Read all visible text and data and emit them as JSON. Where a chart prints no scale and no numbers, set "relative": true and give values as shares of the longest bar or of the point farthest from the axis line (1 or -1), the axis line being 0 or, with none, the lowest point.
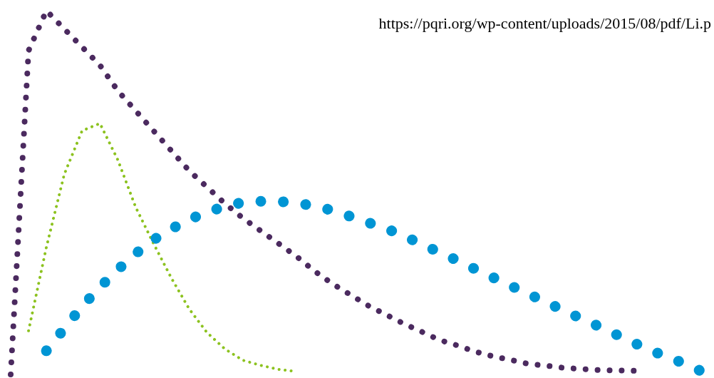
{
  "chart_data": {
    "type": "line",
    "relative": true,
    "line_style": "dotted",
    "annotations": [
      "https://pqri.org/wp-content/uploads/2015/08/pdf/Li.p"
    ],
    "categories": [
      null,
      null,
      null,
      null,
      null,
      null,
      null,
      null,
      null,
      null,
      null,
      null,
      null,
      null,
      null,
      null,
      null,
      null,
      null,
      null,
      null,
      null,
      null,
      null,
      null,
      null,
      null,
      null,
      null,
      null,
      null,
      null,
      null,
      null,
      null,
      null,
      null,
      null,
      null,
      null
    ],
    "series": [
      {
        "color": "#4b2a5f",
        "values": [
          0,
          0.89,
          1,
          0.95,
          0.9,
          0.85,
          0.78,
          0.725,
          0.67,
          0.615,
          0.56,
          0.515,
          0.47,
          0.43,
          0.395,
          0.36,
          0.325,
          0.285,
          0.25,
          0.22,
          0.19,
          0.165,
          0.14,
          0.118,
          0.095,
          0.08,
          0.063,
          0.05,
          0.04,
          0.029,
          0.024,
          0.018,
          0.015,
          0.012,
          0.011,
          0.01,
          null,
          null,
          null,
          null
        ]
      },
      {
        "color": "#8cc21f",
        "values": [
          null,
          0.12,
          0.35,
          0.55,
          0.67,
          0.69,
          0.59,
          0.46,
          0.36,
          0.265,
          0.18,
          0.115,
          0.07,
          0.039,
          0.025,
          0.014,
          0.008,
          null,
          null,
          null,
          null,
          null,
          null,
          null,
          null,
          null,
          null,
          null,
          null,
          null,
          null,
          null,
          null,
          null,
          null,
          null,
          null,
          null,
          null,
          null
        ]
      },
      {
        "color": "#0095d4",
        "values": [
          null,
          null,
          0.065,
          0.126,
          0.187,
          0.24,
          0.288,
          0.332,
          0.37,
          0.4,
          0.426,
          0.446,
          0.462,
          0.473,
          0.476,
          0.476,
          0.471,
          0.464,
          0.451,
          0.435,
          0.418,
          0.402,
          0.381,
          0.359,
          0.336,
          0.314,
          0.29,
          0.267,
          0.244,
          0.221,
          0.199,
          0.175,
          0.153,
          0.131,
          0.108,
          0.085,
          0.063,
          0.045,
          0.024,
          0.002
        ]
      }
    ]
  }
}
